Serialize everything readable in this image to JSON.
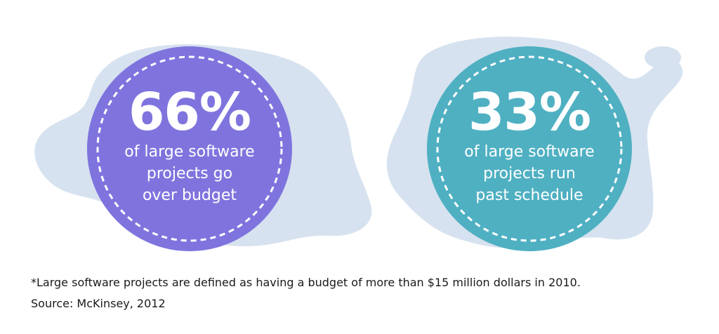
{
  "colors": {
    "left_circle": "#7f74de",
    "right_circle": "#4fb0c2",
    "blob": "#d6e2ef",
    "text": "#ffffff",
    "footnote_text": "#1a1a1a"
  },
  "stats": [
    {
      "value": "66%",
      "lines": [
        "of large software",
        "projects go",
        "over budget"
      ]
    },
    {
      "value": "33%",
      "lines": [
        "of large software",
        "projects run",
        "past schedule"
      ]
    }
  ],
  "footnote": {
    "definition": "*Large software projects are defined as having a budget of more than $15 million dollars in 2010.",
    "source": "Source: McKinsey, 2012"
  }
}
